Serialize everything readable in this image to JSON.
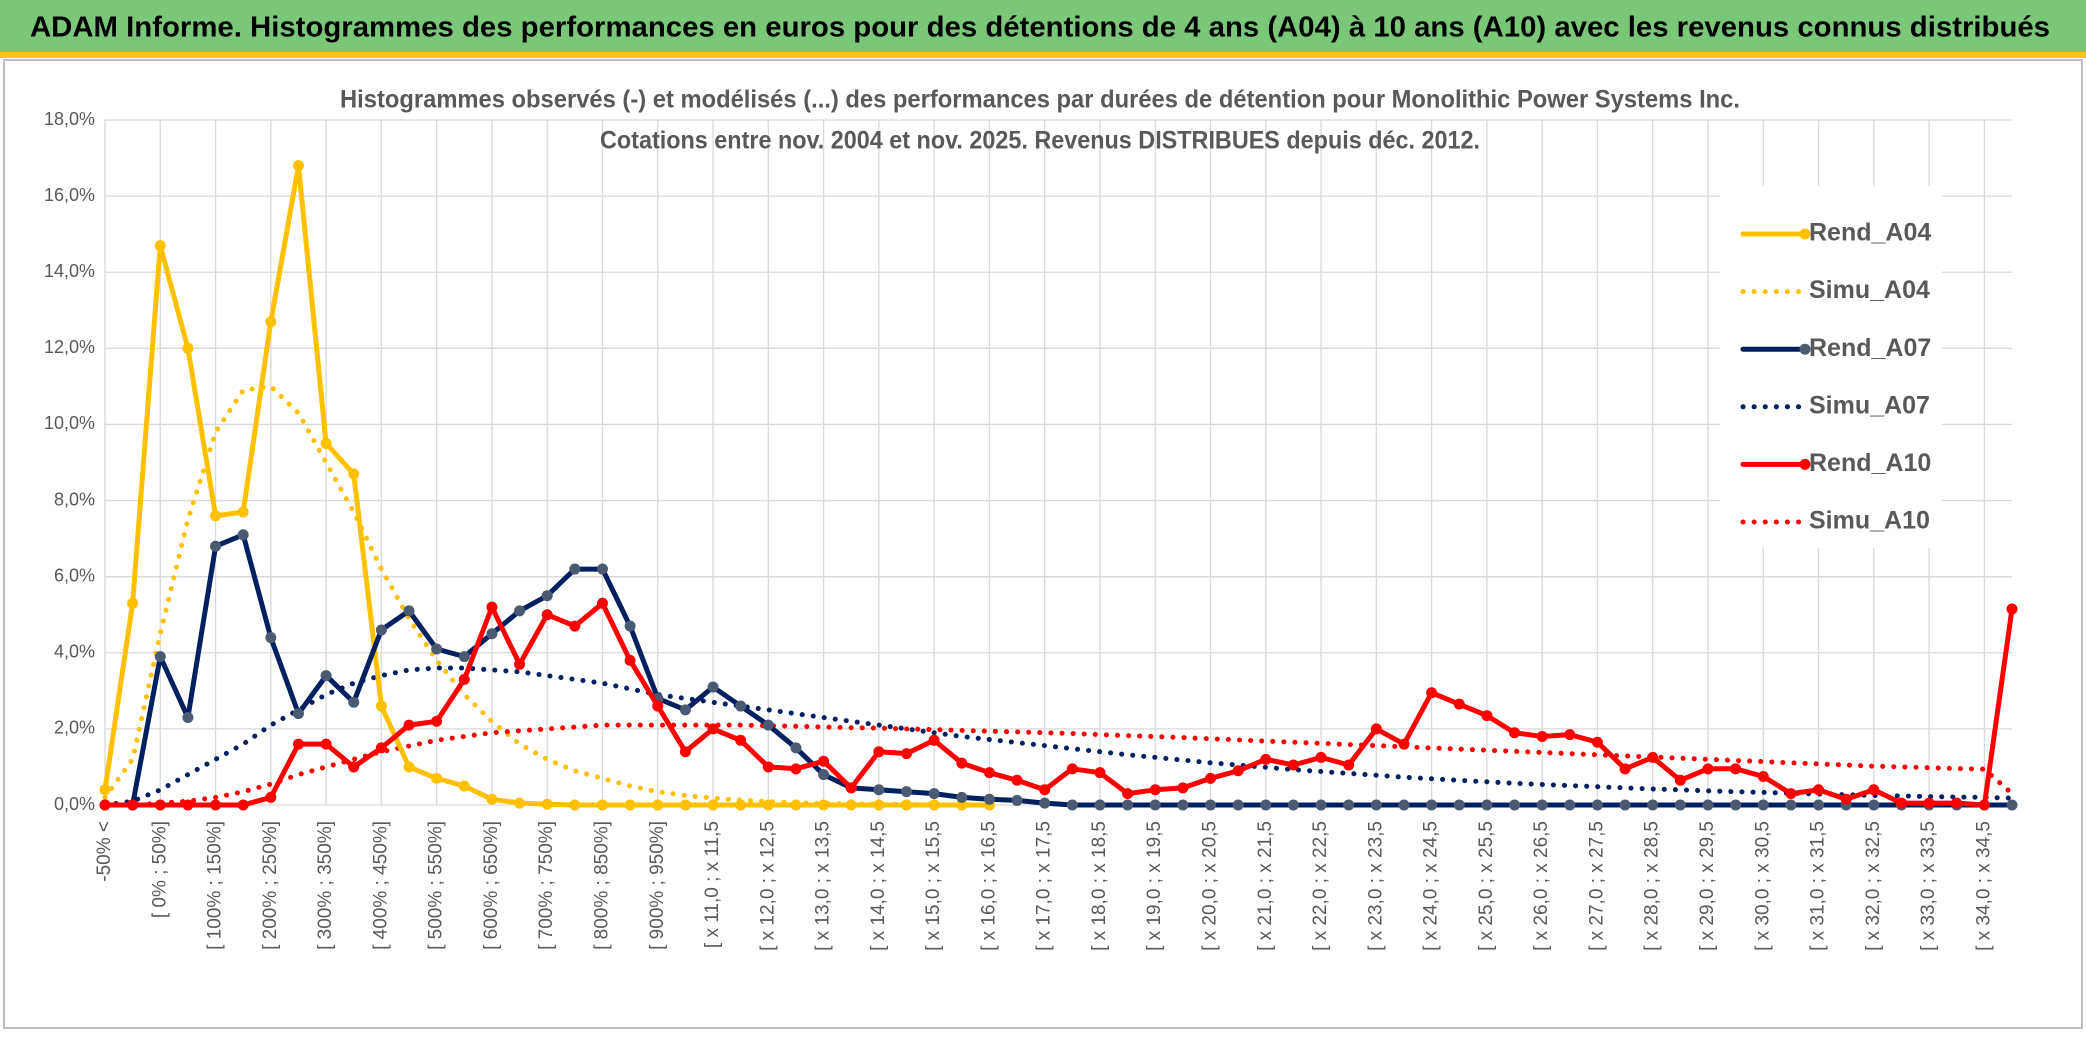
{
  "chart_data": {
    "type": "line",
    "page_title": "ADAM Informe. Histogrammes des performances en euros pour des détentions de 4 ans (A04) à 10 ans (A10) avec les revenus connus distribués",
    "title": "Histogrammes observés (-) et modélisés (...) des performances par durées de détention pour Monolithic Power Systems Inc.",
    "subtitle": "Cotations entre nov. 2004 et nov. 2025. Revenus DISTRIBUES depuis déc. 2012.",
    "categories": [
      "-50% <",
      null,
      "[ 0% ; 50%]",
      null,
      "[ 100% ; 150%]",
      null,
      "[ 200% ; 250%]",
      null,
      "[ 300% ; 350%]",
      null,
      "[ 400% ; 450%]",
      null,
      "[ 500% ; 550%]",
      null,
      "[ 600% ; 650%]",
      null,
      "[ 700% ; 750%]",
      null,
      "[ 800% ; 850%]",
      null,
      "[ 900% ; 950%]",
      null,
      "[ x 11,0 ; x 11,5",
      null,
      "[ x 12,0 ; x 12,5",
      null,
      "[ x 13,0 ; x 13,5",
      null,
      "[ x 14,0 ; x 14,5",
      null,
      "[ x 15,0 ; x 15,5",
      null,
      "[ x 16,0 ; x 16,5",
      null,
      "[ x 17,0 ; x 17,5",
      null,
      "[ x 18,0 ; x 18,5",
      null,
      "[ x 19,0 ; x 19,5",
      null,
      "[ x 20,0 ; x 20,5",
      null,
      "[ x 21,0 ; x 21,5",
      null,
      "[ x 22,0 ; x 22,5",
      null,
      "[ x 23,0 ; x 23,5",
      null,
      "[ x 24,0 ; x 24,5",
      null,
      "[ x 25,0 ; x 25,5",
      null,
      "[ x 26,0 ; x 26,5",
      null,
      "[ x 27,0 ; x 27,5",
      null,
      "[ x 28,0 ; x 28,5",
      null,
      "[ x 29,0 ; x 29,5",
      null,
      "[ x 30,0 ; x 30,5",
      null,
      "[ x 31,0 ; x 31,5",
      null,
      "[ x 32,0 ; x 32,5",
      null,
      "[ x 33,0 ; x 33,5",
      null,
      "[ x 34,0 ; x 34,5",
      null
    ],
    "series": [
      {
        "name": "Rend_A04",
        "color": "#ffc000",
        "marker_color": "#ffc000",
        "style": "solid",
        "markers": true,
        "values": [
          0.4,
          5.3,
          14.7,
          12.0,
          7.6,
          7.7,
          12.7,
          16.8,
          9.5,
          8.7,
          2.6,
          1.0,
          0.7,
          0.5,
          0.15,
          0.05,
          0.02,
          0,
          0,
          0,
          0,
          0,
          0,
          0,
          0,
          0,
          0,
          0,
          0,
          0,
          0,
          0,
          0,
          null,
          null,
          null,
          null,
          null,
          null,
          null,
          null,
          null,
          null,
          null,
          null,
          null,
          null,
          null,
          null,
          null,
          null,
          null,
          null,
          null,
          null,
          null,
          null,
          null,
          null,
          null,
          null,
          null,
          null,
          null,
          null,
          null,
          null,
          null,
          null,
          null
        ]
      },
      {
        "name": "Simu_A04",
        "color": "#ffc000",
        "style": "dotted",
        "markers": false,
        "values": [
          0.2,
          1.2,
          4.5,
          7.5,
          9.8,
          10.9,
          11.0,
          10.3,
          9.0,
          7.7,
          6.2,
          4.9,
          3.8,
          2.9,
          2.2,
          1.6,
          1.2,
          0.9,
          0.7,
          0.5,
          0.35,
          0.25,
          0.18,
          0.13,
          0.09,
          0.06,
          0.04,
          0.03,
          0.02,
          0.01,
          0.01,
          0,
          0,
          null,
          null,
          null,
          null,
          null,
          null,
          null,
          null,
          null,
          null,
          null,
          null,
          null,
          null,
          null,
          null,
          null,
          null,
          null,
          null,
          null,
          null,
          null,
          null,
          null,
          null,
          null,
          null,
          null,
          null,
          null,
          null,
          null,
          null,
          null,
          null,
          null
        ]
      },
      {
        "name": "Rend_A07",
        "color": "#002060",
        "marker_color": "#4a5a72",
        "style": "solid",
        "markers": true,
        "values": [
          0,
          0,
          3.9,
          2.3,
          6.8,
          7.1,
          4.4,
          2.4,
          3.4,
          2.7,
          4.6,
          5.1,
          4.1,
          3.9,
          4.5,
          5.1,
          5.5,
          6.2,
          6.2,
          4.7,
          2.8,
          2.5,
          3.1,
          2.6,
          2.1,
          1.5,
          0.8,
          0.45,
          0.4,
          0.35,
          0.3,
          0.2,
          0.15,
          0.12,
          0.05,
          0,
          0,
          0,
          0,
          0,
          0,
          0,
          0,
          0,
          0,
          0,
          0,
          0,
          0,
          0,
          0,
          0,
          0,
          0,
          0,
          0,
          0,
          0,
          0,
          0,
          0,
          0,
          0,
          0,
          0,
          0,
          0,
          0,
          0,
          0
        ]
      },
      {
        "name": "Simu_A07",
        "color": "#002060",
        "style": "dotted",
        "markers": false,
        "values": [
          0,
          0.1,
          0.4,
          0.8,
          1.2,
          1.6,
          2.1,
          2.5,
          2.9,
          3.2,
          3.4,
          3.55,
          3.6,
          3.6,
          3.55,
          3.5,
          3.4,
          3.3,
          3.2,
          3.05,
          2.9,
          2.8,
          2.7,
          2.6,
          2.5,
          2.4,
          2.3,
          2.2,
          2.1,
          2.0,
          1.9,
          1.8,
          1.72,
          1.64,
          1.56,
          1.48,
          1.4,
          1.32,
          1.25,
          1.18,
          1.11,
          1.05,
          0.99,
          0.93,
          0.88,
          0.83,
          0.78,
          0.73,
          0.69,
          0.65,
          0.61,
          0.57,
          0.54,
          0.51,
          0.48,
          0.45,
          0.42,
          0.4,
          0.37,
          0.35,
          0.33,
          0.31,
          0.29,
          0.27,
          0.25,
          0.24,
          0.22,
          0.21,
          0.2,
          0.18
        ]
      },
      {
        "name": "Rend_A10",
        "color": "#ff0000",
        "marker_color": "#ff0000",
        "style": "solid",
        "markers": true,
        "values": [
          0,
          0,
          0,
          0,
          0,
          0,
          0.2,
          1.6,
          1.6,
          1.0,
          1.5,
          2.1,
          2.2,
          3.3,
          5.2,
          3.7,
          5.0,
          4.7,
          5.3,
          3.8,
          2.6,
          1.4,
          2.0,
          1.7,
          1.0,
          0.95,
          1.15,
          0.45,
          1.4,
          1.35,
          1.7,
          1.1,
          0.85,
          0.65,
          0.4,
          0.95,
          0.85,
          0.3,
          0.4,
          0.45,
          0.7,
          0.9,
          1.2,
          1.05,
          1.25,
          1.05,
          2.0,
          1.6,
          2.95,
          2.65,
          2.35,
          1.9,
          1.8,
          1.85,
          1.65,
          0.95,
          1.25,
          0.65,
          0.95,
          0.95,
          0.75,
          0.3,
          0.4,
          0.15,
          0.4,
          0.05,
          0.05,
          0.05,
          0,
          5.15
        ]
      },
      {
        "name": "Simu_A10",
        "color": "#ff0000",
        "style": "dotted",
        "markers": false,
        "values": [
          0,
          0,
          0.05,
          0.1,
          0.2,
          0.35,
          0.55,
          0.8,
          1.0,
          1.2,
          1.4,
          1.55,
          1.7,
          1.8,
          1.9,
          1.95,
          2.0,
          2.05,
          2.1,
          2.1,
          2.1,
          2.1,
          2.1,
          2.1,
          2.08,
          2.07,
          2.05,
          2.03,
          2.02,
          2.0,
          1.98,
          1.96,
          1.94,
          1.92,
          1.9,
          1.88,
          1.85,
          1.82,
          1.8,
          1.77,
          1.74,
          1.71,
          1.68,
          1.65,
          1.62,
          1.59,
          1.56,
          1.53,
          1.5,
          1.47,
          1.44,
          1.41,
          1.38,
          1.35,
          1.32,
          1.29,
          1.26,
          1.23,
          1.2,
          1.17,
          1.14,
          1.11,
          1.08,
          1.05,
          1.02,
          1.0,
          0.98,
          0.96,
          0.94,
          0.3
        ]
      }
    ],
    "ylim": [
      0,
      18
    ],
    "yticks": [
      {
        "value": 0,
        "label": "0,0%"
      },
      {
        "value": 2,
        "label": "2,0%"
      },
      {
        "value": 4,
        "label": "4,0%"
      },
      {
        "value": 6,
        "label": "6,0%"
      },
      {
        "value": 8,
        "label": "8,0%"
      },
      {
        "value": 10,
        "label": "10,0%"
      },
      {
        "value": 12,
        "label": "12,0%"
      },
      {
        "value": 14,
        "label": "14,0%"
      },
      {
        "value": 16,
        "label": "16,0%"
      },
      {
        "value": 18,
        "label": "18,0%"
      }
    ],
    "grid": true,
    "legend": "upper right"
  }
}
